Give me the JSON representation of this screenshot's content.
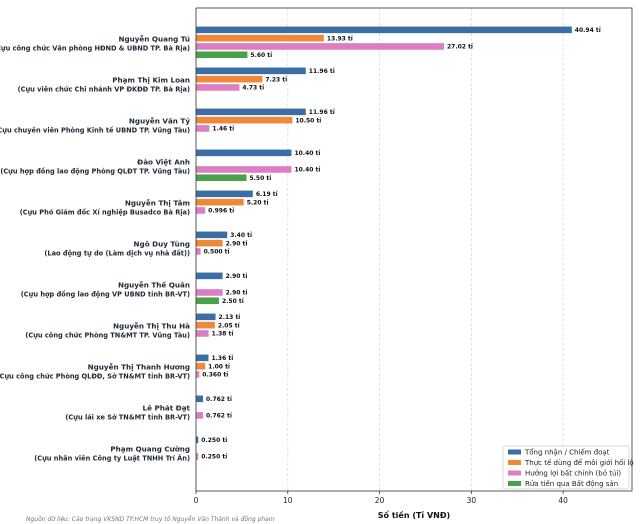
{
  "chart_data": {
    "type": "bar",
    "orientation": "horizontal",
    "categories": [
      {
        "name": "Nguyễn Quang Tú",
        "role": "(Cựu công chức Văn phòng HĐND & UBND TP. Bà Rịa)"
      },
      {
        "name": "Phạm Thị Kim Loan",
        "role": "(Cựu viên chức Chi nhánh VP ĐKĐĐ TP. Bà Rịa)"
      },
      {
        "name": "Nguyễn Văn Tỷ",
        "role": "(Cựu chuyên viên Phòng Kinh tế UBND TP. Vũng Tàu)"
      },
      {
        "name": "Đào Việt Anh",
        "role": "(Cựu hợp đồng lao động Phòng QLĐT TP. Vũng Tàu)"
      },
      {
        "name": "Nguyễn Thị Tâm",
        "role": "(Cựu Phó Giám đốc Xí nghiệp Busadco Bà Rịa)"
      },
      {
        "name": "Ngô Duy Tùng",
        "role": "(Lao động tự do (Làm dịch vụ nhà đất))"
      },
      {
        "name": "Nguyễn Thế Quân",
        "role": "(Cựu hợp đồng lao động VP UBND tỉnh BR-VT)"
      },
      {
        "name": "Nguyễn Thị Thu Hà",
        "role": "(Cựu công chức Phòng TN&MT TP. Vũng Tàu)"
      },
      {
        "name": "Nguyễn Thị Thanh Hương",
        "role": "(Cựu công chức Phòng QLĐĐ, Sở TN&MT tỉnh BR-VT)"
      },
      {
        "name": "Lê Phát Đạt",
        "role": "(Cựu lái xe Sở TN&MT tỉnh BR-VT)"
      },
      {
        "name": "Phạm Quang Cường",
        "role": "(Cựu nhân viên Công ty Luật TNHH Trí Ân)"
      }
    ],
    "series": [
      {
        "name": "Tổng nhận / Chiếm đoạt",
        "color": "#3a6ea5",
        "values": [
          40.94,
          11.96,
          11.96,
          10.4,
          6.19,
          3.4,
          2.9,
          2.13,
          1.36,
          0.762,
          0.25
        ],
        "labels": [
          "40.94 tỉ",
          "11.96 tỉ",
          "11.96 tỉ",
          "10.40 tỉ",
          "6.19 tỉ",
          "3.40 tỉ",
          "2.90 tỉ",
          "2.13 tỉ",
          "1.36 tỉ",
          "0.762 tỉ",
          "0.250 tỉ"
        ]
      },
      {
        "name": "Thực tế dùng để môi giới hối lộ",
        "color": "#f0883a",
        "values": [
          13.93,
          7.23,
          10.5,
          null,
          5.2,
          2.9,
          null,
          2.05,
          1.0,
          null,
          null
        ],
        "labels": [
          "13.93 tỉ",
          "7.23 tỉ",
          "10.50 tỉ",
          null,
          "5.20 tỉ",
          "2.90 tỉ",
          null,
          "2.05 tỉ",
          "1.00 tỉ",
          null,
          null
        ]
      },
      {
        "name": "Hưởng lợi bất chính (bỏ túi)",
        "color": "#dc7ec2",
        "values": [
          27.02,
          4.73,
          1.46,
          10.4,
          0.996,
          0.5,
          2.9,
          1.38,
          0.36,
          0.762,
          0.25
        ],
        "labels": [
          "27.02 tỉ",
          "4.73 tỉ",
          "1.46 tỉ",
          "10.40 tỉ",
          "0.996 tỉ",
          "0.500 tỉ",
          "2.90 tỉ",
          "1.38 tỉ",
          "0.360 tỉ",
          "0.762 tỉ",
          "0.250 tỉ"
        ]
      },
      {
        "name": "Rửa tiền qua Bất động sản",
        "color": "#4aa14a",
        "values": [
          5.6,
          null,
          null,
          5.5,
          null,
          null,
          2.5,
          null,
          null,
          null,
          null
        ],
        "labels": [
          "5.60 tỉ",
          null,
          null,
          "5.50 tỉ",
          null,
          null,
          "2.50 tỉ",
          null,
          null,
          null,
          null
        ]
      }
    ],
    "xlabel": "Số tiền (Tỉ VNĐ)",
    "xlim": [
      0,
      47.5
    ],
    "xticks": [
      0,
      10,
      20,
      30,
      40
    ],
    "grid": "vertical-dashed",
    "legend_position": "bottom-right",
    "source_note": "Nguồn dữ liệu: Cáo trạng VKSND TP.HCM truy tố Nguyễn Văn Thành và đồng phạm"
  }
}
